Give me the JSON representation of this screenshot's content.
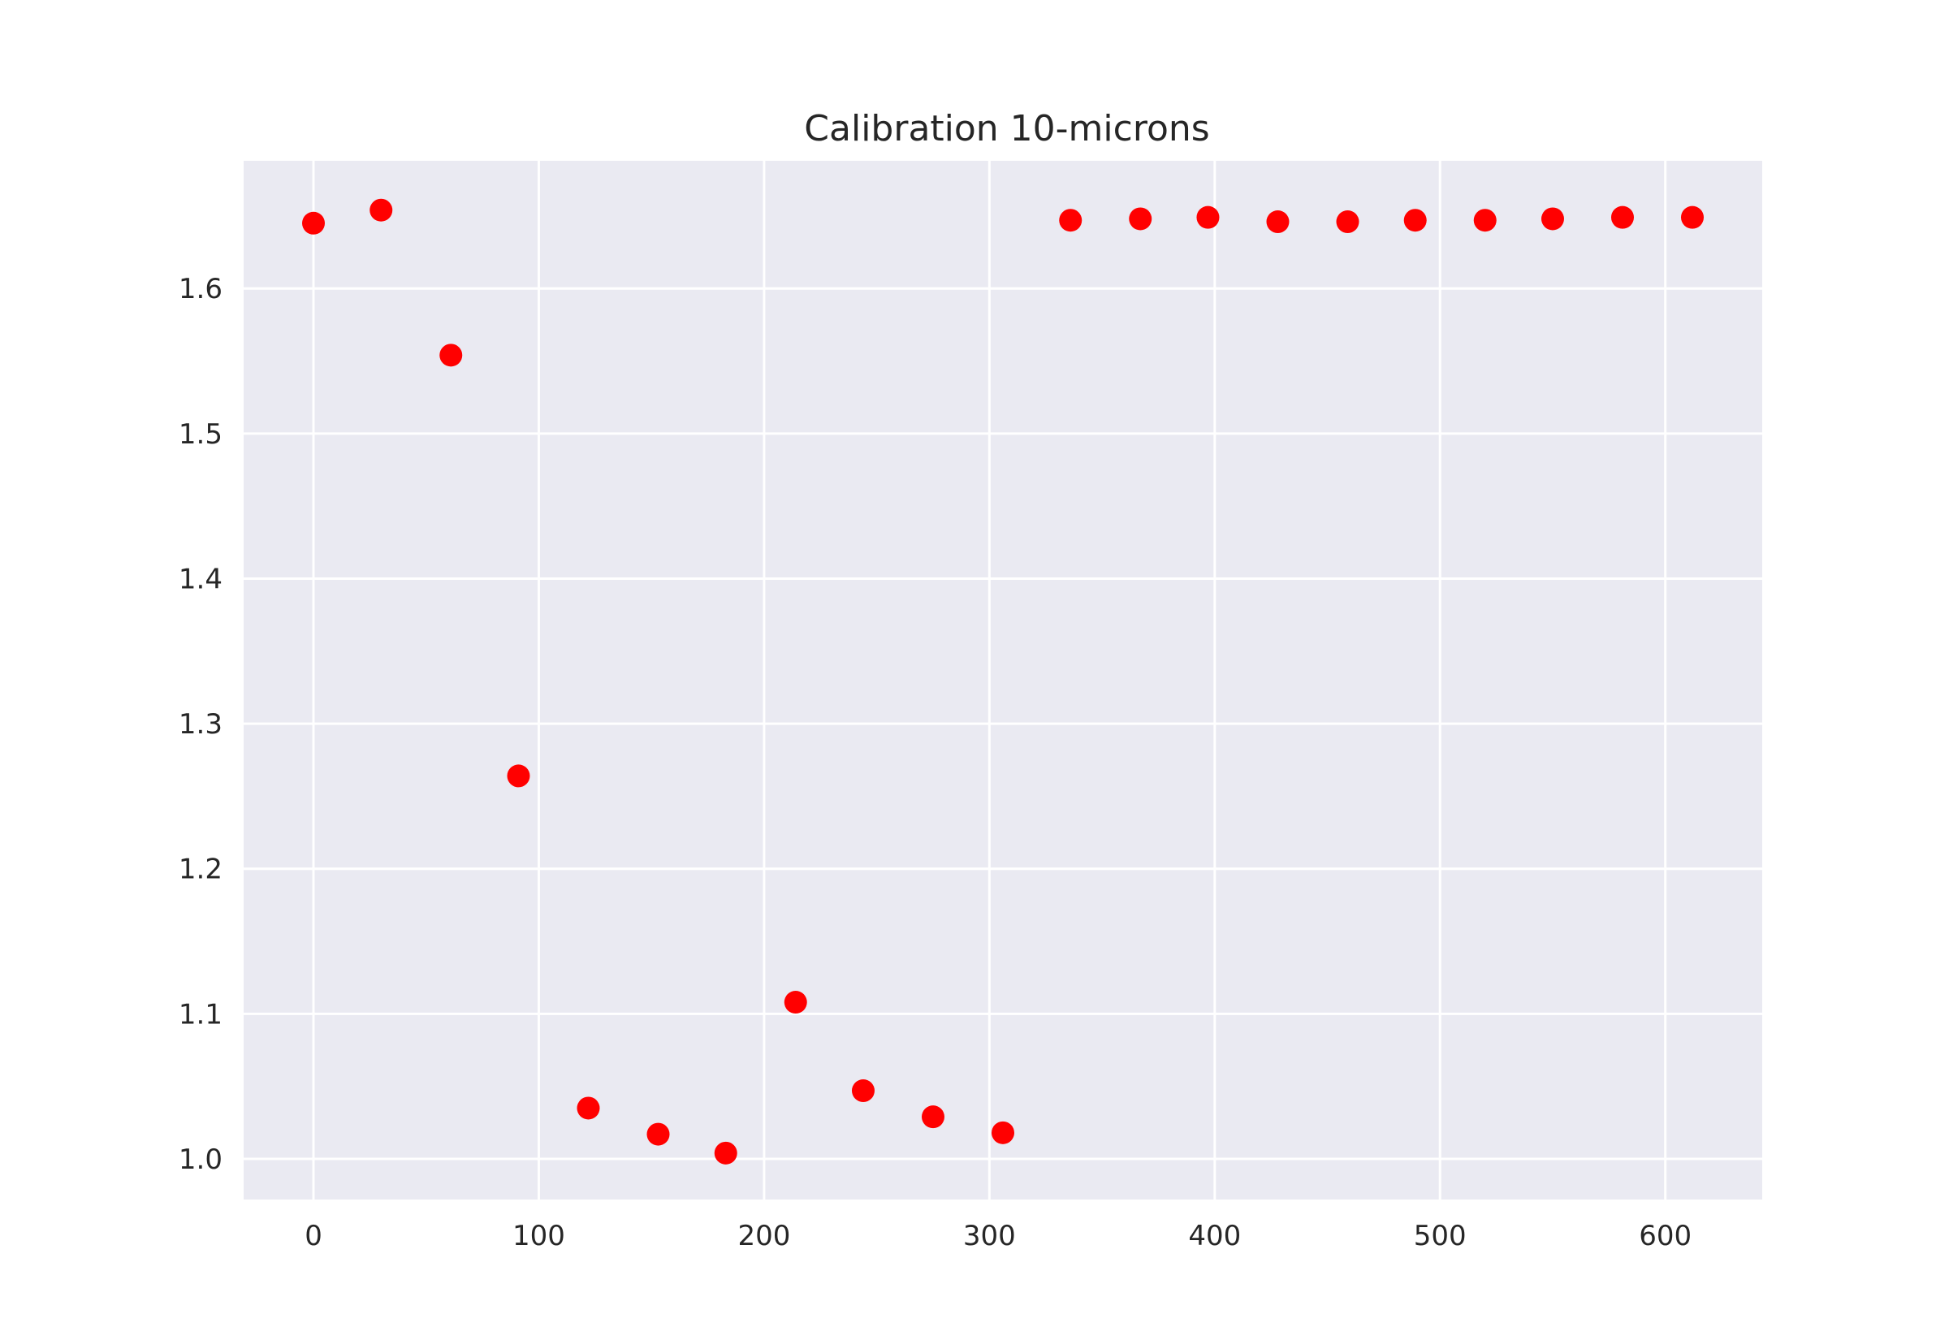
{
  "chart_data": {
    "type": "scatter",
    "title": "Calibration 10-microns",
    "xlabel": "",
    "ylabel": "",
    "xlim": [
      -31,
      643
    ],
    "ylim": [
      0.972,
      1.688
    ],
    "xticks": [
      0,
      100,
      200,
      300,
      400,
      500,
      600
    ],
    "yticks": [
      1.0,
      1.1,
      1.2,
      1.3,
      1.4,
      1.5,
      1.6
    ],
    "xtick_labels": [
      "0",
      "100",
      "200",
      "300",
      "400",
      "500",
      "600"
    ],
    "ytick_labels": [
      "1.0",
      "1.1",
      "1.2",
      "1.3",
      "1.4",
      "1.5",
      "1.6"
    ],
    "grid": true,
    "background": "#eaeaf2",
    "grid_color": "#ffffff",
    "marker_color": "#ff0000",
    "series": [
      {
        "x": [
          0,
          30,
          61,
          91,
          122,
          153,
          183,
          214,
          244,
          275,
          306,
          336,
          367,
          397,
          428,
          459,
          489,
          520,
          550,
          581,
          612
        ],
        "y": [
          1.645,
          1.654,
          1.554,
          1.264,
          1.035,
          1.017,
          1.004,
          1.108,
          1.047,
          1.029,
          1.018,
          1.647,
          1.648,
          1.649,
          1.646,
          1.646,
          1.647,
          1.647,
          1.648,
          1.649,
          1.649
        ]
      }
    ]
  }
}
